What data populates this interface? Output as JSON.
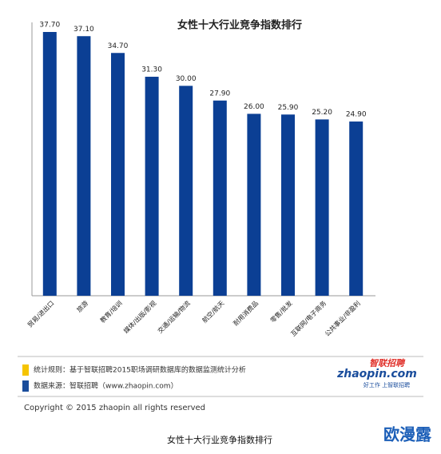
{
  "chart_data": {
    "type": "bar",
    "title": "女性十大行业竞争指数排行",
    "categories": [
      "贸易/进出口",
      "旅游",
      "教育/培训",
      "媒体/出版/影视",
      "交通/运输/物流",
      "航空/航天",
      "耐用消费品",
      "零售/批发",
      "互联网/电子商务",
      "公共事业/非盈利"
    ],
    "values": [
      37.7,
      37.1,
      34.7,
      31.3,
      30.0,
      27.9,
      26.0,
      25.9,
      25.2,
      24.9
    ],
    "value_labels": [
      "37.70",
      "37.10",
      "34.70",
      "31.30",
      "30.00",
      "27.90",
      "26.00",
      "25.90",
      "25.20",
      "24.90"
    ],
    "color": "#0b3f94"
  },
  "notes": [
    "统计规则：基于智联招聘2015职场调研数据库的数据监测统计分析",
    "数据来源：智联招聘（www.zhaopin.com）"
  ],
  "logo": {
    "name": "智联招聘",
    "site": "zhaopin.com",
    "slogan": "好工作 上智联招聘"
  },
  "copyright": "Copyright  ©  2015 zhaopin all rights reserved",
  "caption": "女性十大行业竞争指数排行",
  "watermark": "欧漫露"
}
